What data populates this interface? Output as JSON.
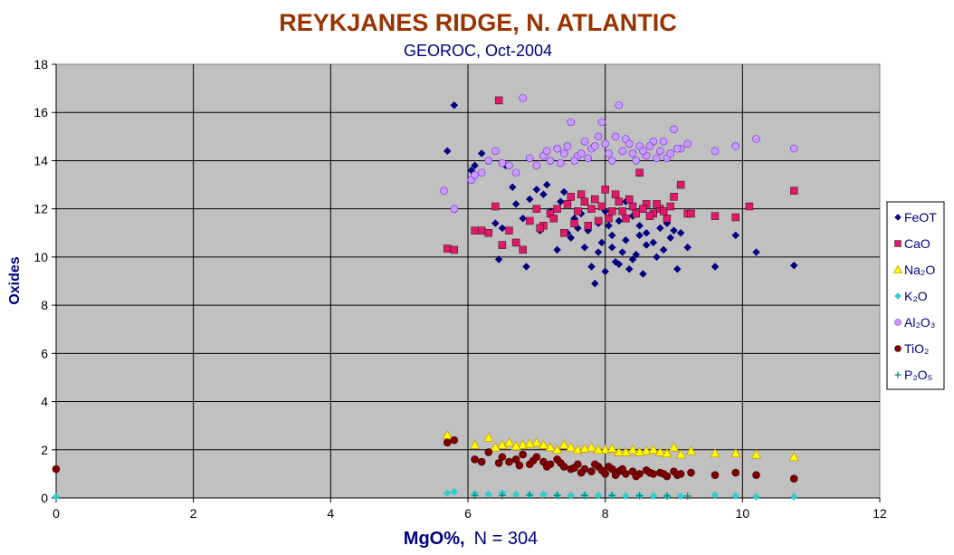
{
  "chart_data": {
    "type": "scatter",
    "title": "REYKJANES RIDGE, N. ATLANTIC",
    "subtitle": "GEOROC, Oct-2004",
    "xlabel_main": "MgO%,",
    "xlabel_n": "N = 304",
    "ylabel": "Oxides",
    "xlim": [
      0,
      12
    ],
    "ylim": [
      0,
      18
    ],
    "x_ticks": [
      "0",
      "2",
      "4",
      "6",
      "8",
      "10",
      "12"
    ],
    "y_ticks": [
      "0",
      "2",
      "4",
      "6",
      "8",
      "10",
      "12",
      "14",
      "16",
      "18"
    ],
    "grid": true,
    "background": "#c0c0c0",
    "legend_position": "right",
    "series": [
      {
        "name": "FeOT",
        "marker": "diamond",
        "color": "#000080",
        "points": [
          [
            5.7,
            14.4
          ],
          [
            5.8,
            16.3
          ],
          [
            6.05,
            13.6
          ],
          [
            6.1,
            13.8
          ],
          [
            6.05,
            13.2
          ],
          [
            6.2,
            14.3
          ],
          [
            6.4,
            11.4
          ],
          [
            6.45,
            9.9
          ],
          [
            6.5,
            11.2
          ],
          [
            6.55,
            13.8
          ],
          [
            6.7,
            12.2
          ],
          [
            6.8,
            11.6
          ],
          [
            6.85,
            9.6
          ],
          [
            6.9,
            12.4
          ],
          [
            7.0,
            12.8
          ],
          [
            7.05,
            11.1
          ],
          [
            7.1,
            12.6
          ],
          [
            7.2,
            11.9
          ],
          [
            7.3,
            10.3
          ],
          [
            7.4,
            12.7
          ],
          [
            7.5,
            10.8
          ],
          [
            7.55,
            11.6
          ],
          [
            7.6,
            11.2
          ],
          [
            7.7,
            10.4
          ],
          [
            7.75,
            11.1
          ],
          [
            7.8,
            9.6
          ],
          [
            7.85,
            8.9
          ],
          [
            7.9,
            11.4
          ],
          [
            7.95,
            10.6
          ],
          [
            8.0,
            9.4
          ],
          [
            8.05,
            11.3
          ],
          [
            8.1,
            10.9
          ],
          [
            8.15,
            9.8
          ],
          [
            8.2,
            11.5
          ],
          [
            8.25,
            10.2
          ],
          [
            8.3,
            12.3
          ],
          [
            8.35,
            9.5
          ],
          [
            8.4,
            11.7
          ],
          [
            8.45,
            10.1
          ],
          [
            8.5,
            10.9
          ],
          [
            8.55,
            9.3
          ],
          [
            8.6,
            11.0
          ],
          [
            8.7,
            10.6
          ],
          [
            8.8,
            11.2
          ],
          [
            8.85,
            10.3
          ],
          [
            8.9,
            11.4
          ],
          [
            9.0,
            11.1
          ],
          [
            9.05,
            9.5
          ],
          [
            9.2,
            10.4
          ],
          [
            9.6,
            9.6
          ],
          [
            9.9,
            10.9
          ],
          [
            10.2,
            10.2
          ],
          [
            10.75,
            9.65
          ]
        ],
        "points_extra": [
          [
            6.65,
            12.9
          ],
          [
            7.15,
            13.0
          ],
          [
            7.35,
            12.3
          ],
          [
            7.45,
            11.0
          ],
          [
            7.65,
            11.8
          ],
          [
            7.9,
            10.2
          ],
          [
            8.0,
            11.9
          ],
          [
            8.1,
            10.4
          ],
          [
            8.2,
            9.7
          ],
          [
            8.3,
            10.7
          ],
          [
            8.4,
            9.9
          ],
          [
            8.5,
            11.3
          ],
          [
            8.6,
            10.5
          ],
          [
            8.75,
            10.0
          ],
          [
            8.95,
            10.8
          ],
          [
            9.1,
            11.0
          ]
        ]
      },
      {
        "name": "CaO",
        "marker": "square",
        "color": "#e0196a",
        "points": [
          [
            5.7,
            10.35
          ],
          [
            5.8,
            10.3
          ],
          [
            6.1,
            11.1
          ],
          [
            6.2,
            11.1
          ],
          [
            6.3,
            11.0
          ],
          [
            6.4,
            12.1
          ],
          [
            6.45,
            16.5
          ],
          [
            6.5,
            10.5
          ],
          [
            6.6,
            11.1
          ],
          [
            6.7,
            10.6
          ],
          [
            6.8,
            10.3
          ],
          [
            6.9,
            11.5
          ],
          [
            7.0,
            12.0
          ],
          [
            7.1,
            11.3
          ],
          [
            7.2,
            11.8
          ],
          [
            7.3,
            12.0
          ],
          [
            7.4,
            11.0
          ],
          [
            7.5,
            12.5
          ],
          [
            7.6,
            11.9
          ],
          [
            7.7,
            12.3
          ],
          [
            7.8,
            12.0
          ],
          [
            7.9,
            11.5
          ],
          [
            8.0,
            12.8
          ],
          [
            8.1,
            11.9
          ],
          [
            8.2,
            12.3
          ],
          [
            8.3,
            11.6
          ],
          [
            8.4,
            12.1
          ],
          [
            8.5,
            13.5
          ],
          [
            8.6,
            12.2
          ],
          [
            8.7,
            11.8
          ],
          [
            8.8,
            12.0
          ],
          [
            8.9,
            11.6
          ],
          [
            9.0,
            12.5
          ],
          [
            9.1,
            13.0
          ],
          [
            9.2,
            11.8
          ],
          [
            9.25,
            11.8
          ],
          [
            9.6,
            11.7
          ],
          [
            9.9,
            11.65
          ],
          [
            10.1,
            12.1
          ],
          [
            10.75,
            12.75
          ]
        ],
        "points_extra": [
          [
            7.05,
            11.2
          ],
          [
            7.25,
            11.6
          ],
          [
            7.45,
            12.2
          ],
          [
            7.55,
            11.4
          ],
          [
            7.65,
            12.6
          ],
          [
            7.75,
            11.3
          ],
          [
            7.85,
            12.4
          ],
          [
            7.95,
            12.1
          ],
          [
            8.05,
            11.6
          ],
          [
            8.15,
            12.6
          ],
          [
            8.25,
            11.9
          ],
          [
            8.35,
            12.4
          ],
          [
            8.45,
            11.8
          ],
          [
            8.55,
            12.0
          ],
          [
            8.65,
            11.7
          ],
          [
            8.75,
            12.2
          ],
          [
            8.85,
            11.9
          ],
          [
            8.95,
            12.1
          ]
        ]
      },
      {
        "name": "Na₂O",
        "marker": "triangle",
        "color": "#ffff00",
        "points": [
          [
            5.7,
            2.6
          ],
          [
            6.1,
            2.2
          ],
          [
            6.3,
            2.5
          ],
          [
            6.5,
            2.2
          ],
          [
            6.6,
            2.3
          ],
          [
            6.8,
            2.2
          ],
          [
            7.0,
            2.3
          ],
          [
            7.2,
            2.1
          ],
          [
            7.4,
            2.2
          ],
          [
            7.6,
            2.0
          ],
          [
            7.8,
            2.1
          ],
          [
            8.0,
            2.0
          ],
          [
            8.2,
            1.9
          ],
          [
            8.4,
            2.0
          ],
          [
            8.6,
            1.95
          ],
          [
            8.8,
            1.9
          ],
          [
            9.0,
            2.1
          ],
          [
            9.25,
            1.95
          ],
          [
            9.6,
            1.85
          ],
          [
            9.9,
            1.85
          ],
          [
            10.2,
            1.8
          ],
          [
            10.75,
            1.7
          ]
        ],
        "points_extra": [
          [
            6.4,
            2.1
          ],
          [
            6.7,
            2.15
          ],
          [
            6.9,
            2.25
          ],
          [
            7.1,
            2.2
          ],
          [
            7.3,
            2.0
          ],
          [
            7.5,
            2.1
          ],
          [
            7.7,
            2.05
          ],
          [
            7.9,
            2.0
          ],
          [
            8.1,
            2.05
          ],
          [
            8.3,
            1.9
          ],
          [
            8.5,
            1.9
          ],
          [
            8.7,
            2.0
          ],
          [
            8.9,
            1.85
          ],
          [
            9.1,
            1.8
          ]
        ]
      },
      {
        "name": "K₂O",
        "marker": "diamond",
        "color": "#33cccc",
        "points": [
          [
            0.0,
            0.05
          ],
          [
            5.7,
            0.2
          ],
          [
            5.8,
            0.25
          ],
          [
            6.1,
            0.18
          ],
          [
            6.3,
            0.15
          ],
          [
            6.5,
            0.2
          ],
          [
            6.7,
            0.15
          ],
          [
            6.9,
            0.12
          ],
          [
            7.1,
            0.15
          ],
          [
            7.3,
            0.12
          ],
          [
            7.5,
            0.1
          ],
          [
            7.7,
            0.12
          ],
          [
            7.9,
            0.1
          ],
          [
            8.1,
            0.1
          ],
          [
            8.3,
            0.08
          ],
          [
            8.5,
            0.1
          ],
          [
            8.7,
            0.08
          ],
          [
            8.9,
            0.07
          ],
          [
            9.1,
            0.08
          ],
          [
            9.6,
            0.12
          ],
          [
            9.9,
            0.08
          ],
          [
            10.2,
            0.05
          ],
          [
            10.75,
            0.05
          ]
        ],
        "points_extra": []
      },
      {
        "name": "Al₂O₃",
        "marker": "circle",
        "color": "#cc99ff",
        "points": [
          [
            5.65,
            12.75
          ],
          [
            5.8,
            12.0
          ],
          [
            6.05,
            13.2
          ],
          [
            6.1,
            13.4
          ],
          [
            6.2,
            13.5
          ],
          [
            6.3,
            14.0
          ],
          [
            6.4,
            14.4
          ],
          [
            6.5,
            13.9
          ],
          [
            6.6,
            13.8
          ],
          [
            6.7,
            13.5
          ],
          [
            6.8,
            16.6
          ],
          [
            6.9,
            14.1
          ],
          [
            7.0,
            13.8
          ],
          [
            7.1,
            14.2
          ],
          [
            7.2,
            14.0
          ],
          [
            7.3,
            14.5
          ],
          [
            7.4,
            14.3
          ],
          [
            7.5,
            15.6
          ],
          [
            7.6,
            14.2
          ],
          [
            7.7,
            14.8
          ],
          [
            7.8,
            14.5
          ],
          [
            7.9,
            15.0
          ],
          [
            7.95,
            15.6
          ],
          [
            8.0,
            14.7
          ],
          [
            8.1,
            14.0
          ],
          [
            8.2,
            16.3
          ],
          [
            8.3,
            14.9
          ],
          [
            8.4,
            14.3
          ],
          [
            8.5,
            14.6
          ],
          [
            8.6,
            14.2
          ],
          [
            8.7,
            14.8
          ],
          [
            8.8,
            14.4
          ],
          [
            8.9,
            14.1
          ],
          [
            9.0,
            15.3
          ],
          [
            9.1,
            14.5
          ],
          [
            9.2,
            14.7
          ],
          [
            9.6,
            14.4
          ],
          [
            9.9,
            14.6
          ],
          [
            10.2,
            14.9
          ],
          [
            10.75,
            14.5
          ]
        ],
        "points_extra": [
          [
            7.15,
            14.4
          ],
          [
            7.35,
            13.9
          ],
          [
            7.45,
            14.6
          ],
          [
            7.55,
            14.0
          ],
          [
            7.65,
            14.3
          ],
          [
            7.75,
            14.1
          ],
          [
            7.85,
            14.6
          ],
          [
            8.05,
            14.3
          ],
          [
            8.15,
            15.0
          ],
          [
            8.25,
            14.4
          ],
          [
            8.35,
            14.7
          ],
          [
            8.45,
            14.0
          ],
          [
            8.55,
            14.4
          ],
          [
            8.65,
            14.6
          ],
          [
            8.75,
            14.1
          ],
          [
            8.85,
            14.8
          ],
          [
            8.95,
            14.3
          ],
          [
            9.05,
            14.5
          ]
        ]
      },
      {
        "name": "TiO₂",
        "marker": "circle",
        "color": "#800000",
        "points": [
          [
            0.0,
            1.2
          ],
          [
            5.7,
            2.3
          ],
          [
            5.8,
            2.4
          ],
          [
            6.1,
            1.6
          ],
          [
            6.2,
            1.5
          ],
          [
            6.3,
            1.9
          ],
          [
            6.5,
            1.7
          ],
          [
            6.6,
            1.5
          ],
          [
            6.7,
            1.6
          ],
          [
            6.8,
            1.8
          ],
          [
            6.9,
            1.4
          ],
          [
            7.0,
            1.7
          ],
          [
            7.1,
            1.5
          ],
          [
            7.2,
            1.4
          ],
          [
            7.3,
            1.6
          ],
          [
            7.4,
            1.3
          ],
          [
            7.5,
            1.2
          ],
          [
            7.6,
            1.4
          ],
          [
            7.7,
            1.2
          ],
          [
            7.8,
            1.1
          ],
          [
            7.9,
            1.3
          ],
          [
            8.0,
            1.0
          ],
          [
            8.1,
            1.2
          ],
          [
            8.2,
            1.1
          ],
          [
            8.3,
            1.0
          ],
          [
            8.4,
            1.1
          ],
          [
            8.5,
            1.0
          ],
          [
            8.6,
            1.15
          ],
          [
            8.7,
            1.0
          ],
          [
            8.8,
            1.05
          ],
          [
            8.9,
            0.9
          ],
          [
            9.0,
            1.1
          ],
          [
            9.1,
            1.0
          ],
          [
            9.25,
            1.05
          ],
          [
            9.6,
            0.95
          ],
          [
            9.9,
            1.05
          ],
          [
            10.2,
            0.95
          ],
          [
            10.75,
            0.8
          ]
        ],
        "points_extra": [
          [
            6.45,
            1.45
          ],
          [
            6.75,
            1.35
          ],
          [
            6.95,
            1.55
          ],
          [
            7.15,
            1.3
          ],
          [
            7.35,
            1.45
          ],
          [
            7.55,
            1.25
          ],
          [
            7.65,
            1.05
          ],
          [
            7.85,
            1.4
          ],
          [
            7.95,
            1.15
          ],
          [
            8.05,
            1.3
          ],
          [
            8.15,
            0.95
          ],
          [
            8.25,
            1.2
          ],
          [
            8.45,
            0.9
          ],
          [
            8.65,
            1.05
          ],
          [
            8.85,
            1.0
          ],
          [
            9.05,
            0.95
          ]
        ]
      },
      {
        "name": "P₂O₅",
        "marker": "plus",
        "color": "#008080",
        "points": [
          [
            6.1,
            0.1
          ],
          [
            6.5,
            0.1
          ],
          [
            6.9,
            0.12
          ],
          [
            7.3,
            0.1
          ],
          [
            7.7,
            0.1
          ],
          [
            8.1,
            0.1
          ],
          [
            8.5,
            0.09
          ],
          [
            8.9,
            0.08
          ],
          [
            9.2,
            0.08
          ]
        ],
        "points_extra": []
      }
    ]
  }
}
